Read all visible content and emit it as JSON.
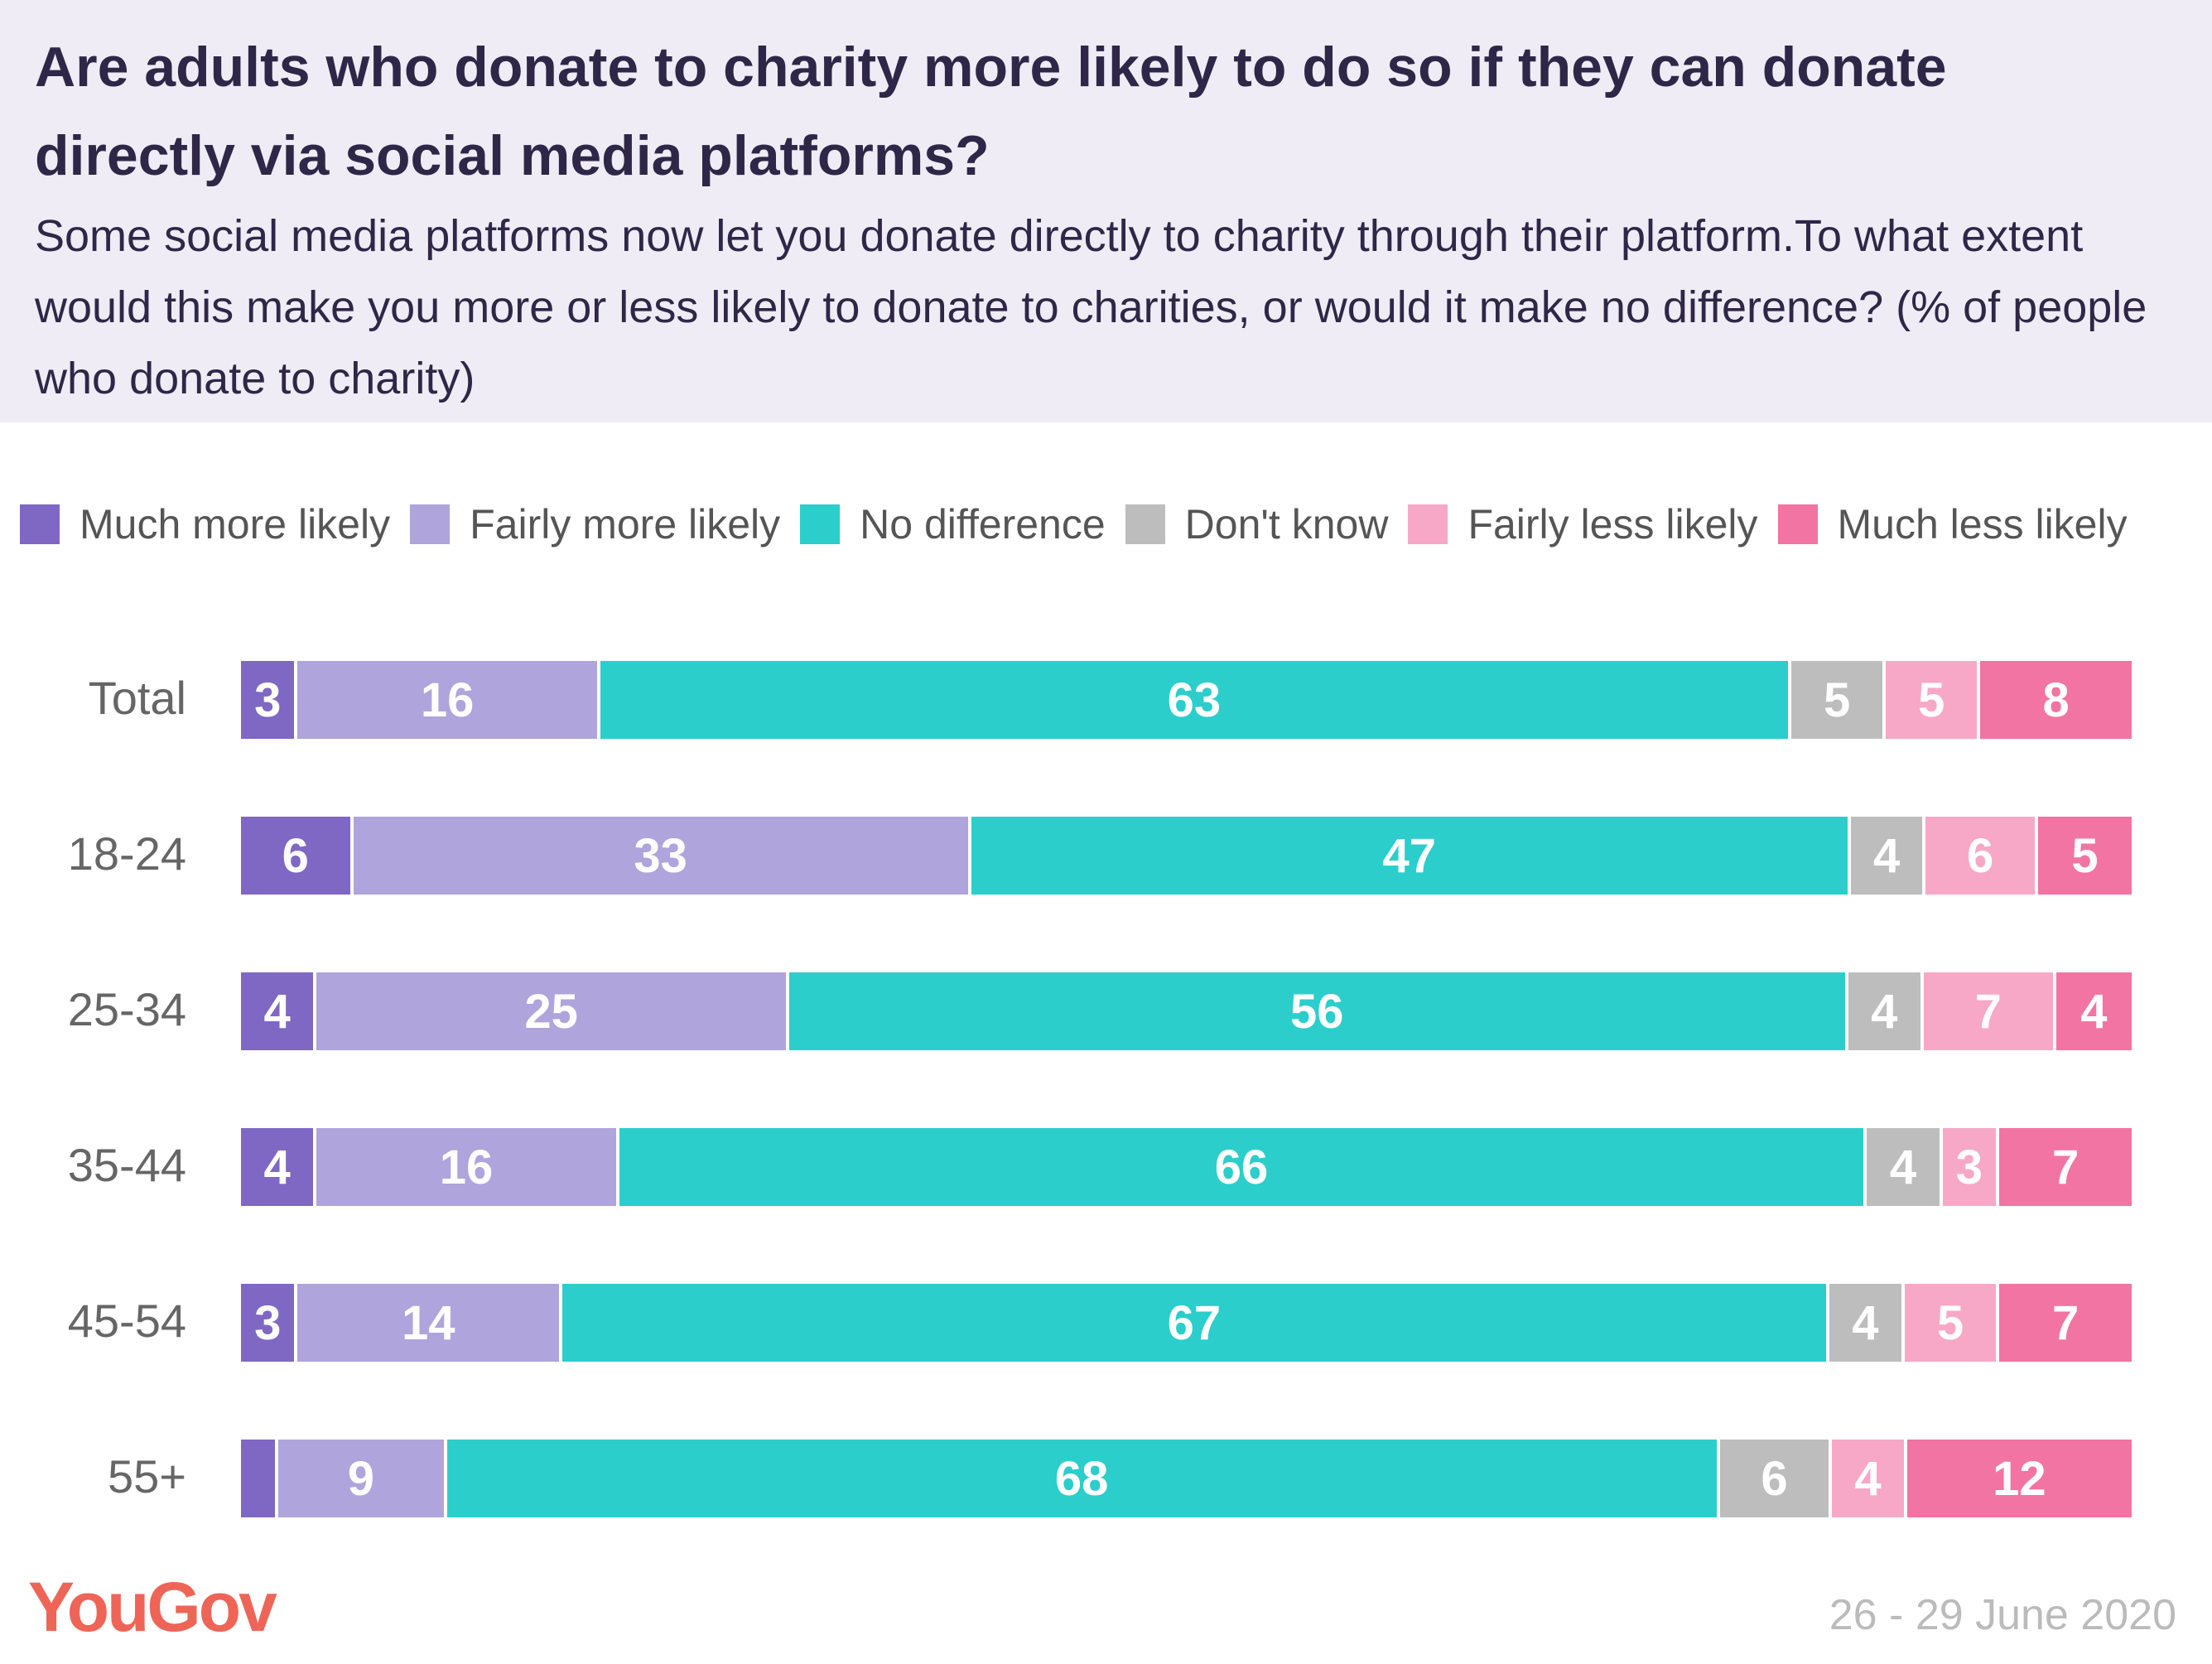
{
  "header": {
    "title": "Are adults who donate to charity more likely to do so if they can donate directly via social media platforms?",
    "subtitle": "Some social media platforms now let you donate directly to charity through their platform.To what extent would this make you more or less likely to donate to charities, or would it make no difference? (% of people who donate to charity)"
  },
  "chart_data": {
    "type": "bar",
    "orientation": "horizontal",
    "stacked": true,
    "title": "Are adults who donate to charity more likely to do so if they can donate directly via social media platforms?",
    "categories": [
      "Total",
      "18-24",
      "25-34",
      "35-44",
      "45-54",
      "55+"
    ],
    "series": [
      {
        "name": "Much more likely",
        "color": "#7f67c4",
        "values": [
          3,
          6,
          4,
          4,
          3,
          2
        ]
      },
      {
        "name": "Fairly more likely",
        "color": "#afa4db",
        "values": [
          16,
          33,
          25,
          16,
          14,
          9
        ]
      },
      {
        "name": "No difference",
        "color": "#2bcecb",
        "values": [
          63,
          47,
          56,
          66,
          67,
          68
        ]
      },
      {
        "name": "Don't know",
        "color": "#bdbdbd",
        "values": [
          5,
          4,
          4,
          4,
          4,
          6
        ]
      },
      {
        "name": "Fairly less likely",
        "color": "#f7a8c6",
        "values": [
          5,
          6,
          7,
          3,
          5,
          4
        ]
      },
      {
        "name": "Much less likely",
        "color": "#f274a2",
        "values": [
          8,
          5,
          4,
          7,
          7,
          12
        ]
      }
    ],
    "legend_position": "top",
    "grid": false
  },
  "footer": {
    "logo": "YouGov",
    "date": "26 - 29 June 2020"
  }
}
